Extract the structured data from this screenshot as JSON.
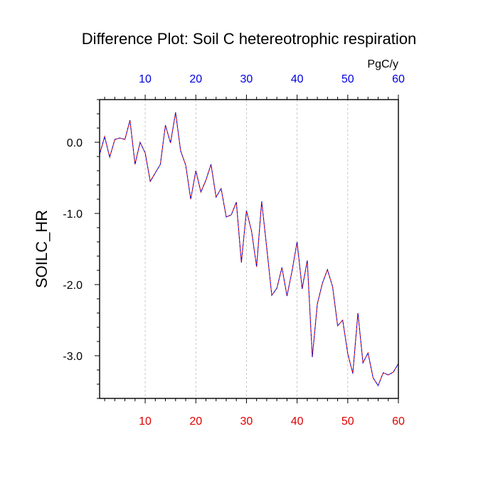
{
  "chart_data": {
    "type": "line",
    "title": "Difference Plot: Soil C hetereotrophic respiration",
    "units": "PgC/y",
    "ylabel": "SOILC_HR",
    "xlim": [
      1,
      60
    ],
    "ylim": [
      -3.6,
      0.6
    ],
    "x_ticks": [
      10,
      20,
      30,
      40,
      50,
      60
    ],
    "y_ticks": [
      0.0,
      -1.0,
      -2.0,
      -3.0
    ],
    "y_tick_labels": [
      "0.0",
      "-1.0",
      "-2.0",
      "-3.0"
    ],
    "bottom_tick_color": "#e00000",
    "top_tick_color": "#0000e0",
    "vertical_grid": true,
    "series": [
      {
        "color_a": "#dd0000",
        "color_b": "#0000dd",
        "x": [
          1,
          2,
          3,
          4,
          5,
          6,
          7,
          8,
          9,
          10,
          11,
          12,
          13,
          14,
          15,
          16,
          17,
          18,
          19,
          20,
          21,
          22,
          23,
          24,
          25,
          26,
          27,
          28,
          29,
          30,
          31,
          32,
          33,
          34,
          35,
          36,
          37,
          38,
          39,
          40,
          41,
          42,
          43,
          44,
          45,
          46,
          47,
          48,
          49,
          50,
          51,
          52,
          53,
          54,
          55,
          56,
          57,
          58,
          59,
          60
        ],
        "y": [
          -0.17,
          0.08,
          -0.21,
          0.04,
          0.06,
          0.04,
          0.31,
          -0.31,
          0.0,
          -0.15,
          -0.55,
          -0.43,
          -0.31,
          0.24,
          -0.01,
          0.42,
          -0.12,
          -0.32,
          -0.8,
          -0.4,
          -0.7,
          -0.53,
          -0.31,
          -0.77,
          -0.65,
          -1.05,
          -1.02,
          -0.84,
          -1.69,
          -0.96,
          -1.25,
          -1.75,
          -0.83,
          -1.48,
          -2.15,
          -2.05,
          -1.76,
          -2.16,
          -1.81,
          -1.4,
          -2.06,
          -1.66,
          -3.02,
          -2.27,
          -1.98,
          -1.79,
          -2.03,
          -2.58,
          -2.5,
          -2.97,
          -3.25,
          -2.4,
          -3.1,
          -2.96,
          -3.31,
          -3.42,
          -3.24,
          -3.27,
          -3.23,
          -3.11
        ]
      }
    ]
  }
}
